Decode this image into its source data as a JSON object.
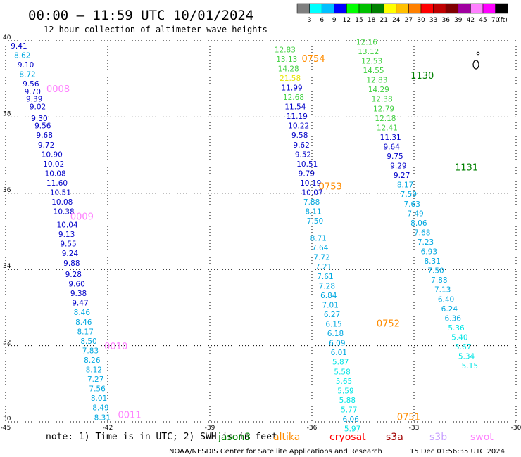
{
  "title": "00:00 – 11:59 UTC 10/01/2024",
  "subtitle": "12 hour collection of altimeter wave heights",
  "legend_scale": {
    "labels": [
      "3",
      "6",
      "9",
      "12",
      "15",
      "18",
      "21",
      "24",
      "27",
      "30",
      "33",
      "36",
      "39",
      "42",
      "45",
      "70"
    ],
    "unit": "(ft)",
    "colors": [
      "#7f7f7f",
      "#00ffff",
      "#00bfff",
      "#0000ff",
      "#00ff00",
      "#00c000",
      "#008000",
      "#ffff00",
      "#ffc000",
      "#ff8000",
      "#ff0000",
      "#c00000",
      "#800000",
      "#a000a0",
      "#ff80ff",
      "#ff00ff",
      "#000000"
    ]
  },
  "note": "note: 1) Time is in UTC; 2) SWH is in feet",
  "satellites": [
    {
      "name": "jason3",
      "color": "#008000"
    },
    {
      "name": "altika",
      "color": "#ff8c00"
    },
    {
      "name": "cryosat",
      "color": "#ff0000"
    },
    {
      "name": "s3a",
      "color": "#a00000"
    },
    {
      "name": "s3b",
      "color": "#c8a0ff"
    },
    {
      "name": "swot",
      "color": "#ff80ff"
    }
  ],
  "credit": "NOAA/NESDIS Center for Satellite Applications and Research",
  "timestamp": "15 Dec 01:56:35 UTC 2024",
  "chart_data": {
    "type": "scatter",
    "xlim": [
      -45,
      -30
    ],
    "ylim": [
      30,
      40
    ],
    "x_ticks": [
      "-45",
      "-42",
      "-39",
      "-36",
      "-33",
      "-30"
    ],
    "y_ticks": [
      "40",
      "38",
      "36",
      "34",
      "32",
      "30"
    ],
    "grid": true,
    "passes": [
      {
        "time": "0008",
        "color": "#ff80ff",
        "label_pos": {
          "lon": -43.8,
          "lat": 38.65
        }
      },
      {
        "time": "0009",
        "color": "#ff80ff",
        "label_pos": {
          "lon": -43.1,
          "lat": 35.3
        }
      },
      {
        "time": "0010",
        "color": "#ff80ff",
        "label_pos": {
          "lon": -42.1,
          "lat": 31.9
        }
      },
      {
        "time": "0011",
        "color": "#ff80ff",
        "label_pos": {
          "lon": -41.7,
          "lat": 30.1
        }
      },
      {
        "time": "0754",
        "color": "#ff8c00",
        "label_pos": {
          "lon": -36.3,
          "lat": 39.45
        }
      },
      {
        "time": "0753",
        "color": "#ff8c00",
        "label_pos": {
          "lon": -35.8,
          "lat": 36.1
        }
      },
      {
        "time": "0752",
        "color": "#ff8c00",
        "label_pos": {
          "lon": -34.1,
          "lat": 32.5
        }
      },
      {
        "time": "0751",
        "color": "#ff8c00",
        "label_pos": {
          "lon": -33.5,
          "lat": 30.05
        }
      },
      {
        "time": "1130",
        "color": "#008000",
        "label_pos": {
          "lon": -33.1,
          "lat": 39.0
        }
      },
      {
        "time": "1131",
        "color": "#008000",
        "label_pos": {
          "lon": -31.8,
          "lat": 36.6
        }
      }
    ],
    "series": [
      {
        "name": "0008-0011",
        "color_by_value": true,
        "points": [
          {
            "lon": -44.85,
            "lat": 39.8,
            "v": "9.41"
          },
          {
            "lon": -44.75,
            "lat": 39.55,
            "v": "8.62"
          },
          {
            "lon": -44.65,
            "lat": 39.3,
            "v": "9.10"
          },
          {
            "lon": -44.6,
            "lat": 39.05,
            "v": "8.72"
          },
          {
            "lon": -44.5,
            "lat": 38.8,
            "v": "9.56"
          },
          {
            "lon": -44.45,
            "lat": 38.6,
            "v": "9.70"
          },
          {
            "lon": -44.4,
            "lat": 38.4,
            "v": "9.39"
          },
          {
            "lon": -44.3,
            "lat": 38.2,
            "v": "9.02"
          },
          {
            "lon": -44.25,
            "lat": 37.9,
            "v": "9.30"
          },
          {
            "lon": -44.15,
            "lat": 37.7,
            "v": "9.56"
          },
          {
            "lon": -44.1,
            "lat": 37.45,
            "v": "9.68"
          },
          {
            "lon": -44.05,
            "lat": 37.2,
            "v": "9.72"
          },
          {
            "lon": -43.95,
            "lat": 36.95,
            "v": "10.90"
          },
          {
            "lon": -43.9,
            "lat": 36.7,
            "v": "10.02"
          },
          {
            "lon": -43.85,
            "lat": 36.45,
            "v": "10.08"
          },
          {
            "lon": -43.8,
            "lat": 36.2,
            "v": "11.60"
          },
          {
            "lon": -43.7,
            "lat": 35.95,
            "v": "10.51"
          },
          {
            "lon": -43.65,
            "lat": 35.7,
            "v": "10.08"
          },
          {
            "lon": -43.6,
            "lat": 35.45,
            "v": "10.38"
          },
          {
            "lon": -43.5,
            "lat": 35.1,
            "v": "10.04"
          },
          {
            "lon": -43.45,
            "lat": 34.85,
            "v": "9.13"
          },
          {
            "lon": -43.4,
            "lat": 34.6,
            "v": "9.55"
          },
          {
            "lon": -43.35,
            "lat": 34.35,
            "v": "9.24"
          },
          {
            "lon": -43.3,
            "lat": 34.1,
            "v": "9.88"
          },
          {
            "lon": -43.25,
            "lat": 33.8,
            "v": "9.28"
          },
          {
            "lon": -43.15,
            "lat": 33.55,
            "v": "9.60"
          },
          {
            "lon": -43.1,
            "lat": 33.3,
            "v": "9.38"
          },
          {
            "lon": -43.05,
            "lat": 33.05,
            "v": "9.47"
          },
          {
            "lon": -43.0,
            "lat": 32.8,
            "v": "8.46"
          },
          {
            "lon": -42.95,
            "lat": 32.55,
            "v": "8.46"
          },
          {
            "lon": -42.9,
            "lat": 32.3,
            "v": "8.17"
          },
          {
            "lon": -42.8,
            "lat": 32.05,
            "v": "8.50"
          },
          {
            "lon": -42.75,
            "lat": 31.8,
            "v": "7.83"
          },
          {
            "lon": -42.7,
            "lat": 31.55,
            "v": "8.26"
          },
          {
            "lon": -42.65,
            "lat": 31.3,
            "v": "8.12"
          },
          {
            "lon": -42.6,
            "lat": 31.05,
            "v": "7.27"
          },
          {
            "lon": -42.55,
            "lat": 30.8,
            "v": "7.56"
          },
          {
            "lon": -42.5,
            "lat": 30.55,
            "v": "8.01"
          },
          {
            "lon": -42.45,
            "lat": 30.3,
            "v": "8.49"
          },
          {
            "lon": -42.4,
            "lat": 30.05,
            "v": "8.31"
          }
        ]
      },
      {
        "name": "0754-0751",
        "color_by_value": true,
        "points": [
          {
            "lon": -37.1,
            "lat": 39.7,
            "v": "12.83"
          },
          {
            "lon": -37.05,
            "lat": 39.45,
            "v": "13.13"
          },
          {
            "lon": -37.0,
            "lat": 39.2,
            "v": "14.28"
          },
          {
            "lon": -36.95,
            "lat": 38.95,
            "v": "21.58"
          },
          {
            "lon": -36.9,
            "lat": 38.7,
            "v": "11.99"
          },
          {
            "lon": -36.85,
            "lat": 38.45,
            "v": "12.68"
          },
          {
            "lon": -36.8,
            "lat": 38.2,
            "v": "11.54"
          },
          {
            "lon": -36.75,
            "lat": 37.95,
            "v": "11.19"
          },
          {
            "lon": -36.7,
            "lat": 37.7,
            "v": "10.22"
          },
          {
            "lon": -36.6,
            "lat": 37.45,
            "v": "9.58"
          },
          {
            "lon": -36.55,
            "lat": 37.2,
            "v": "9.62"
          },
          {
            "lon": -36.5,
            "lat": 36.95,
            "v": "9.52"
          },
          {
            "lon": -36.45,
            "lat": 36.7,
            "v": "10.51"
          },
          {
            "lon": -36.4,
            "lat": 36.45,
            "v": "9.79"
          },
          {
            "lon": -36.35,
            "lat": 36.2,
            "v": "10.19"
          },
          {
            "lon": -36.3,
            "lat": 35.95,
            "v": "10.07"
          },
          {
            "lon": -36.25,
            "lat": 35.7,
            "v": "7.88"
          },
          {
            "lon": -36.2,
            "lat": 35.45,
            "v": "8.11"
          },
          {
            "lon": -36.15,
            "lat": 35.2,
            "v": "7.50"
          },
          {
            "lon": -36.05,
            "lat": 34.75,
            "v": "8.71"
          },
          {
            "lon": -36.0,
            "lat": 34.5,
            "v": "7.64"
          },
          {
            "lon": -35.95,
            "lat": 34.25,
            "v": "7.72"
          },
          {
            "lon": -35.9,
            "lat": 34.0,
            "v": "7.21"
          },
          {
            "lon": -35.85,
            "lat": 33.75,
            "v": "7.61"
          },
          {
            "lon": -35.8,
            "lat": 33.5,
            "v": "7.28"
          },
          {
            "lon": -35.75,
            "lat": 33.25,
            "v": "6.84"
          },
          {
            "lon": -35.7,
            "lat": 33.0,
            "v": "7.01"
          },
          {
            "lon": -35.65,
            "lat": 32.75,
            "v": "6.27"
          },
          {
            "lon": -35.6,
            "lat": 32.5,
            "v": "6.15"
          },
          {
            "lon": -35.55,
            "lat": 32.25,
            "v": "6.18"
          },
          {
            "lon": -35.5,
            "lat": 32.0,
            "v": "6.09"
          },
          {
            "lon": -35.45,
            "lat": 31.75,
            "v": "6.01"
          },
          {
            "lon": -35.4,
            "lat": 31.5,
            "v": "5.87"
          },
          {
            "lon": -35.35,
            "lat": 31.25,
            "v": "5.58"
          },
          {
            "lon": -35.3,
            "lat": 31.0,
            "v": "5.65"
          },
          {
            "lon": -35.25,
            "lat": 30.75,
            "v": "5.59"
          },
          {
            "lon": -35.2,
            "lat": 30.5,
            "v": "5.88"
          },
          {
            "lon": -35.15,
            "lat": 30.25,
            "v": "5.77"
          },
          {
            "lon": -35.1,
            "lat": 30.0,
            "v": "6.06"
          },
          {
            "lon": -35.05,
            "lat": 29.75,
            "v": "5.97"
          }
        ]
      },
      {
        "name": "1130-1131",
        "color_by_value": true,
        "points": [
          {
            "lon": -34.7,
            "lat": 39.9,
            "v": "12.16"
          },
          {
            "lon": -34.65,
            "lat": 39.65,
            "v": "13.12"
          },
          {
            "lon": -34.55,
            "lat": 39.4,
            "v": "12.53"
          },
          {
            "lon": -34.5,
            "lat": 39.15,
            "v": "14.55"
          },
          {
            "lon": -34.4,
            "lat": 38.9,
            "v": "12.83"
          },
          {
            "lon": -34.35,
            "lat": 38.65,
            "v": "14.29"
          },
          {
            "lon": -34.25,
            "lat": 38.4,
            "v": "12.38"
          },
          {
            "lon": -34.2,
            "lat": 38.15,
            "v": "12.79"
          },
          {
            "lon": -34.15,
            "lat": 37.9,
            "v": "12.18"
          },
          {
            "lon": -34.1,
            "lat": 37.65,
            "v": "12.41"
          },
          {
            "lon": -34.0,
            "lat": 37.4,
            "v": "11.31"
          },
          {
            "lon": -33.9,
            "lat": 37.15,
            "v": "9.64"
          },
          {
            "lon": -33.8,
            "lat": 36.9,
            "v": "9.75"
          },
          {
            "lon": -33.7,
            "lat": 36.65,
            "v": "9.29"
          },
          {
            "lon": -33.6,
            "lat": 36.4,
            "v": "9.27"
          },
          {
            "lon": -33.5,
            "lat": 36.15,
            "v": "8.17"
          },
          {
            "lon": -33.4,
            "lat": 35.9,
            "v": "7.59"
          },
          {
            "lon": -33.3,
            "lat": 35.65,
            "v": "7.63"
          },
          {
            "lon": -33.2,
            "lat": 35.4,
            "v": "7.49"
          },
          {
            "lon": -33.1,
            "lat": 35.15,
            "v": "8.06"
          },
          {
            "lon": -33.0,
            "lat": 34.9,
            "v": "7.68"
          },
          {
            "lon": -32.9,
            "lat": 34.65,
            "v": "7.23"
          },
          {
            "lon": -32.8,
            "lat": 34.4,
            "v": "6.93"
          },
          {
            "lon": -32.7,
            "lat": 34.15,
            "v": "8.31"
          },
          {
            "lon": -32.6,
            "lat": 33.9,
            "v": "7.50"
          },
          {
            "lon": -32.5,
            "lat": 33.65,
            "v": "7.88"
          },
          {
            "lon": -32.4,
            "lat": 33.4,
            "v": "7.13"
          },
          {
            "lon": -32.3,
            "lat": 33.15,
            "v": "6.40"
          },
          {
            "lon": -32.2,
            "lat": 32.9,
            "v": "6.24"
          },
          {
            "lon": -32.1,
            "lat": 32.65,
            "v": "6.36"
          },
          {
            "lon": -32.0,
            "lat": 32.4,
            "v": "5.36"
          },
          {
            "lon": -31.9,
            "lat": 32.15,
            "v": "5.40"
          },
          {
            "lon": -31.8,
            "lat": 31.9,
            "v": "5.67"
          },
          {
            "lon": -31.7,
            "lat": 31.65,
            "v": "5.34"
          },
          {
            "lon": -31.6,
            "lat": 31.4,
            "v": "5.15"
          }
        ]
      }
    ]
  }
}
